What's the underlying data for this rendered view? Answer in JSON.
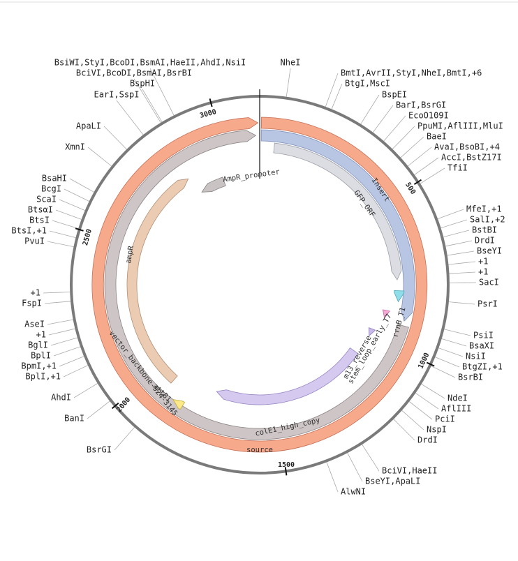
{
  "site_labels": [
    "BsiWI,StyI,BcoDI,BsmAI,HaeII,AhdI,NsiI",
    "BciVI,BcoDI,BsmAI,BsrBI",
    "BspHI",
    "EarI,SspI",
    "NheI",
    "BmtI,AvrII,StyI,NheI,BmtI,+6",
    "BtgI,MscI",
    "BspEI",
    "BarI,BsrGI",
    "EcoO109I",
    "PpuMI,AflIII,MluI",
    "BaeI",
    "AvaI,BsoBI,+4",
    "AccI,BstZ17I",
    "TfiI",
    "MfeI,+1",
    "SalI,+2",
    "BstBI",
    "DrdI",
    "BseYI",
    "+1",
    "+1",
    "SacI",
    "PsrI",
    "PsiI",
    "BsaXI",
    "NsiI",
    "BtgZI,+1",
    "BsrBI",
    "NdeI",
    "AflIII",
    "PciI",
    "NspI",
    "DrdI",
    "BciVI,HaeII",
    "BseYI,ApaLI",
    "AlwNI",
    "ApaLI",
    "XmnI",
    "BsaHI",
    "BcgI",
    "ScaI",
    "BtsαI",
    "BtsI",
    "BtsI,+1",
    "PvuI",
    "+1",
    "FspI",
    "AseI",
    "+1",
    "BglI",
    "BplI",
    "BpmI,+1",
    "BplI,+1",
    "AhdI",
    "BanI",
    "BsrGI"
  ],
  "features": [
    {
      "label": "source"
    },
    {
      "label": "Insert"
    },
    {
      "label": "GFP_ORF"
    },
    {
      "label": "rrnB_T1"
    },
    {
      "label": "stem_loop_early_T7"
    },
    {
      "label": "m13_reverse"
    },
    {
      "label": "colE1_high_copy"
    },
    {
      "label": "vector_backbone-924-3145"
    },
    {
      "label": "attB1"
    },
    {
      "label": "ampR"
    },
    {
      "label": "AmpR_promoter"
    }
  ],
  "ticks": [
    3000,
    500,
    1000,
    1500,
    2000,
    2500
  ]
}
